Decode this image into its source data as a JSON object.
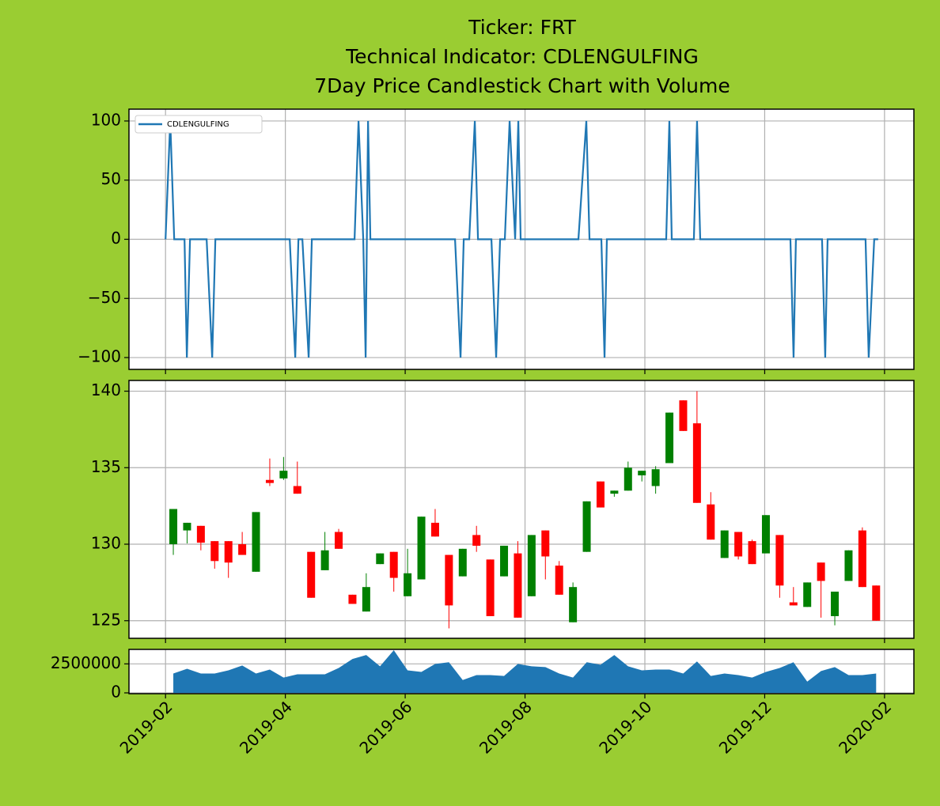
{
  "chart_data": [
    {
      "type": "line",
      "title": [
        "Ticker: FRT",
        "Technical Indicator: CDLENGULFING",
        "7Day Price Candlestick Chart with Volume"
      ],
      "x": [
        1.0,
        1.079,
        1.145,
        1.317,
        1.356,
        1.409,
        1.686,
        1.779,
        1.832,
        3.073,
        3.165,
        3.218,
        3.284,
        3.389,
        3.442,
        4.155,
        4.221,
        4.3,
        4.34,
        4.38,
        4.419,
        5.832,
        5.924,
        5.977,
        6.069,
        6.162,
        6.215,
        6.439,
        6.518,
        6.584,
        6.663,
        6.743,
        6.835,
        6.888,
        6.927,
        7.891,
        8.023,
        8.076,
        8.274,
        8.327,
        8.366,
        9.356,
        9.409,
        9.449,
        9.818,
        9.871,
        9.924,
        11.429,
        11.482,
        11.521,
        11.957,
        12.01,
        12.05,
        12.683,
        12.736,
        12.828,
        12.894
      ],
      "series": [
        {
          "name": "CDLENGULFING",
          "color": "#1f77b4",
          "values": [
            0,
            100,
            0,
            0,
            -100,
            0,
            0,
            -100,
            0,
            0,
            -100,
            0,
            0,
            -100,
            0,
            0,
            100,
            0,
            -100,
            100,
            0,
            0,
            -100,
            0,
            0,
            100,
            0,
            0,
            -100,
            0,
            0,
            100,
            0,
            100,
            0,
            0,
            100,
            0,
            0,
            -100,
            0,
            0,
            100,
            0,
            0,
            100,
            0,
            0,
            -100,
            0,
            0,
            -100,
            0,
            0,
            -100,
            0,
            0
          ]
        }
      ],
      "xlim": [
        0.39,
        13.49
      ],
      "xticks": [
        1,
        3,
        5,
        7,
        9,
        11,
        13
      ],
      "ylim": [
        -110,
        110
      ],
      "yticks": [
        100,
        50,
        0,
        {
          "value": -50,
          "label": "−50"
        },
        {
          "value": -100,
          "label": "−100"
        }
      ],
      "grid": true,
      "legend": "upper left"
    },
    {
      "type": "candlestick",
      "x": [
        1.13,
        1.36,
        1.59,
        1.82,
        2.05,
        2.28,
        2.51,
        2.74,
        2.97,
        3.2,
        3.43,
        3.66,
        3.89,
        4.12,
        4.35,
        4.58,
        4.81,
        5.04,
        5.27,
        5.5,
        5.73,
        5.96,
        6.19,
        6.42,
        6.65,
        6.88,
        7.11,
        7.34,
        7.57,
        7.8,
        8.03,
        8.26,
        8.49,
        8.72,
        8.95,
        9.18,
        9.41,
        9.64,
        9.87,
        10.1,
        10.33,
        10.56,
        10.79,
        11.02,
        11.25,
        11.48,
        11.71,
        11.94,
        12.17,
        12.4,
        12.63,
        12.86
      ],
      "open": [
        130.0,
        130.9,
        131.2,
        130.2,
        130.2,
        130.0,
        128.2,
        134.2,
        134.3,
        133.8,
        129.5,
        128.3,
        130.8,
        126.7,
        125.6,
        128.7,
        129.5,
        126.6,
        127.7,
        131.4,
        129.3,
        127.9,
        130.6,
        129.0,
        127.9,
        129.4,
        126.6,
        130.9,
        128.6,
        124.9,
        129.5,
        134.1,
        133.3,
        133.5,
        134.5,
        133.8,
        135.3,
        139.4,
        137.9,
        132.6,
        129.1,
        130.8,
        130.2,
        129.4,
        130.6,
        126.2,
        125.9,
        128.8,
        125.3,
        127.6,
        130.9,
        127.3
      ],
      "high": [
        132.3,
        131.4,
        131.2,
        130.2,
        130.2,
        130.8,
        132.1,
        135.6,
        135.7,
        135.4,
        129.5,
        130.8,
        131.0,
        126.7,
        128.1,
        129.4,
        129.5,
        129.7,
        131.8,
        132.3,
        129.3,
        129.7,
        131.2,
        129.0,
        129.9,
        130.2,
        130.6,
        130.9,
        128.9,
        127.5,
        132.8,
        134.1,
        133.5,
        135.4,
        134.8,
        135.1,
        138.6,
        139.4,
        140.0,
        133.4,
        130.9,
        130.8,
        130.3,
        131.9,
        130.6,
        127.2,
        127.5,
        128.8,
        126.9,
        129.6,
        131.1,
        127.3
      ],
      "low": [
        129.3,
        130.05,
        129.6,
        128.4,
        127.8,
        129.3,
        128.2,
        133.8,
        134.2,
        133.3,
        126.5,
        128.3,
        129.7,
        126.1,
        125.6,
        128.7,
        126.9,
        126.6,
        127.7,
        130.5,
        124.5,
        127.9,
        129.5,
        125.3,
        127.9,
        125.2,
        126.6,
        127.7,
        126.7,
        124.9,
        129.5,
        132.4,
        133.1,
        133.5,
        134.1,
        133.3,
        135.3,
        137.4,
        132.7,
        130.3,
        129.1,
        129.0,
        128.7,
        129.4,
        126.5,
        126.0,
        125.9,
        125.2,
        124.7,
        127.6,
        127.2,
        125.0
      ],
      "close": [
        132.3,
        131.4,
        130.1,
        128.9,
        128.8,
        129.3,
        132.1,
        134.0,
        134.8,
        133.3,
        126.5,
        129.6,
        129.7,
        126.1,
        127.2,
        129.4,
        127.8,
        128.1,
        131.8,
        130.5,
        126.0,
        129.7,
        129.9,
        125.3,
        129.9,
        125.2,
        130.6,
        129.2,
        126.7,
        127.2,
        132.8,
        132.4,
        133.5,
        135.0,
        134.8,
        134.9,
        138.6,
        137.4,
        132.7,
        130.3,
        130.9,
        129.2,
        128.7,
        131.9,
        127.3,
        126.0,
        127.5,
        127.6,
        126.9,
        129.6,
        127.2,
        125.0
      ],
      "up_color": "green",
      "down_color": "red",
      "xlim": [
        0.39,
        13.49
      ],
      "xticks": [
        1,
        3,
        5,
        7,
        9,
        11,
        13
      ],
      "ylim": [
        123.85,
        140.7
      ],
      "yticks": [
        125,
        130,
        135,
        140
      ],
      "grid": true
    },
    {
      "type": "area",
      "x": [
        1.13,
        1.36,
        1.59,
        1.82,
        2.05,
        2.28,
        2.51,
        2.74,
        2.97,
        3.2,
        3.43,
        3.66,
        3.89,
        4.12,
        4.35,
        4.58,
        4.81,
        5.04,
        5.27,
        5.5,
        5.73,
        5.96,
        6.19,
        6.42,
        6.65,
        6.88,
        7.11,
        7.34,
        7.57,
        7.8,
        8.03,
        8.26,
        8.49,
        8.72,
        8.95,
        9.18,
        9.41,
        9.64,
        9.87,
        10.1,
        10.33,
        10.56,
        10.79,
        11.02,
        11.25,
        11.48,
        11.71,
        11.94,
        12.17,
        12.4,
        12.63,
        12.86
      ],
      "values": [
        1670000,
        2080000,
        1670000,
        1670000,
        1940000,
        2360000,
        1670000,
        2010000,
        1320000,
        1600000,
        1600000,
        1600000,
        2150000,
        2920000,
        3260000,
        2290000,
        3680000,
        1940000,
        1810000,
        2500000,
        2640000,
        1110000,
        1530000,
        1530000,
        1460000,
        2500000,
        2290000,
        2220000,
        1670000,
        1320000,
        2640000,
        2430000,
        3260000,
        2290000,
        1940000,
        2010000,
        2010000,
        1670000,
        2710000,
        1460000,
        1670000,
        1530000,
        1320000,
        1810000,
        2150000,
        2640000,
        970000,
        1880000,
        2220000,
        1530000,
        1530000,
        1670000
      ],
      "color": "#1f77b4",
      "xlim": [
        0.39,
        13.49
      ],
      "xticks": [
        {
          "value": 1,
          "label": "2019-02"
        },
        {
          "value": 3,
          "label": "2019-04"
        },
        {
          "value": 5,
          "label": "2019-06"
        },
        {
          "value": 7,
          "label": "2019-08"
        },
        {
          "value": 9,
          "label": "2019-10"
        },
        {
          "value": 11,
          "label": "2019-12"
        },
        {
          "value": 13,
          "label": "2020-02"
        }
      ],
      "ylim": [
        -70000,
        3750000
      ],
      "yticks": [
        0,
        2500000
      ],
      "grid": true
    }
  ]
}
